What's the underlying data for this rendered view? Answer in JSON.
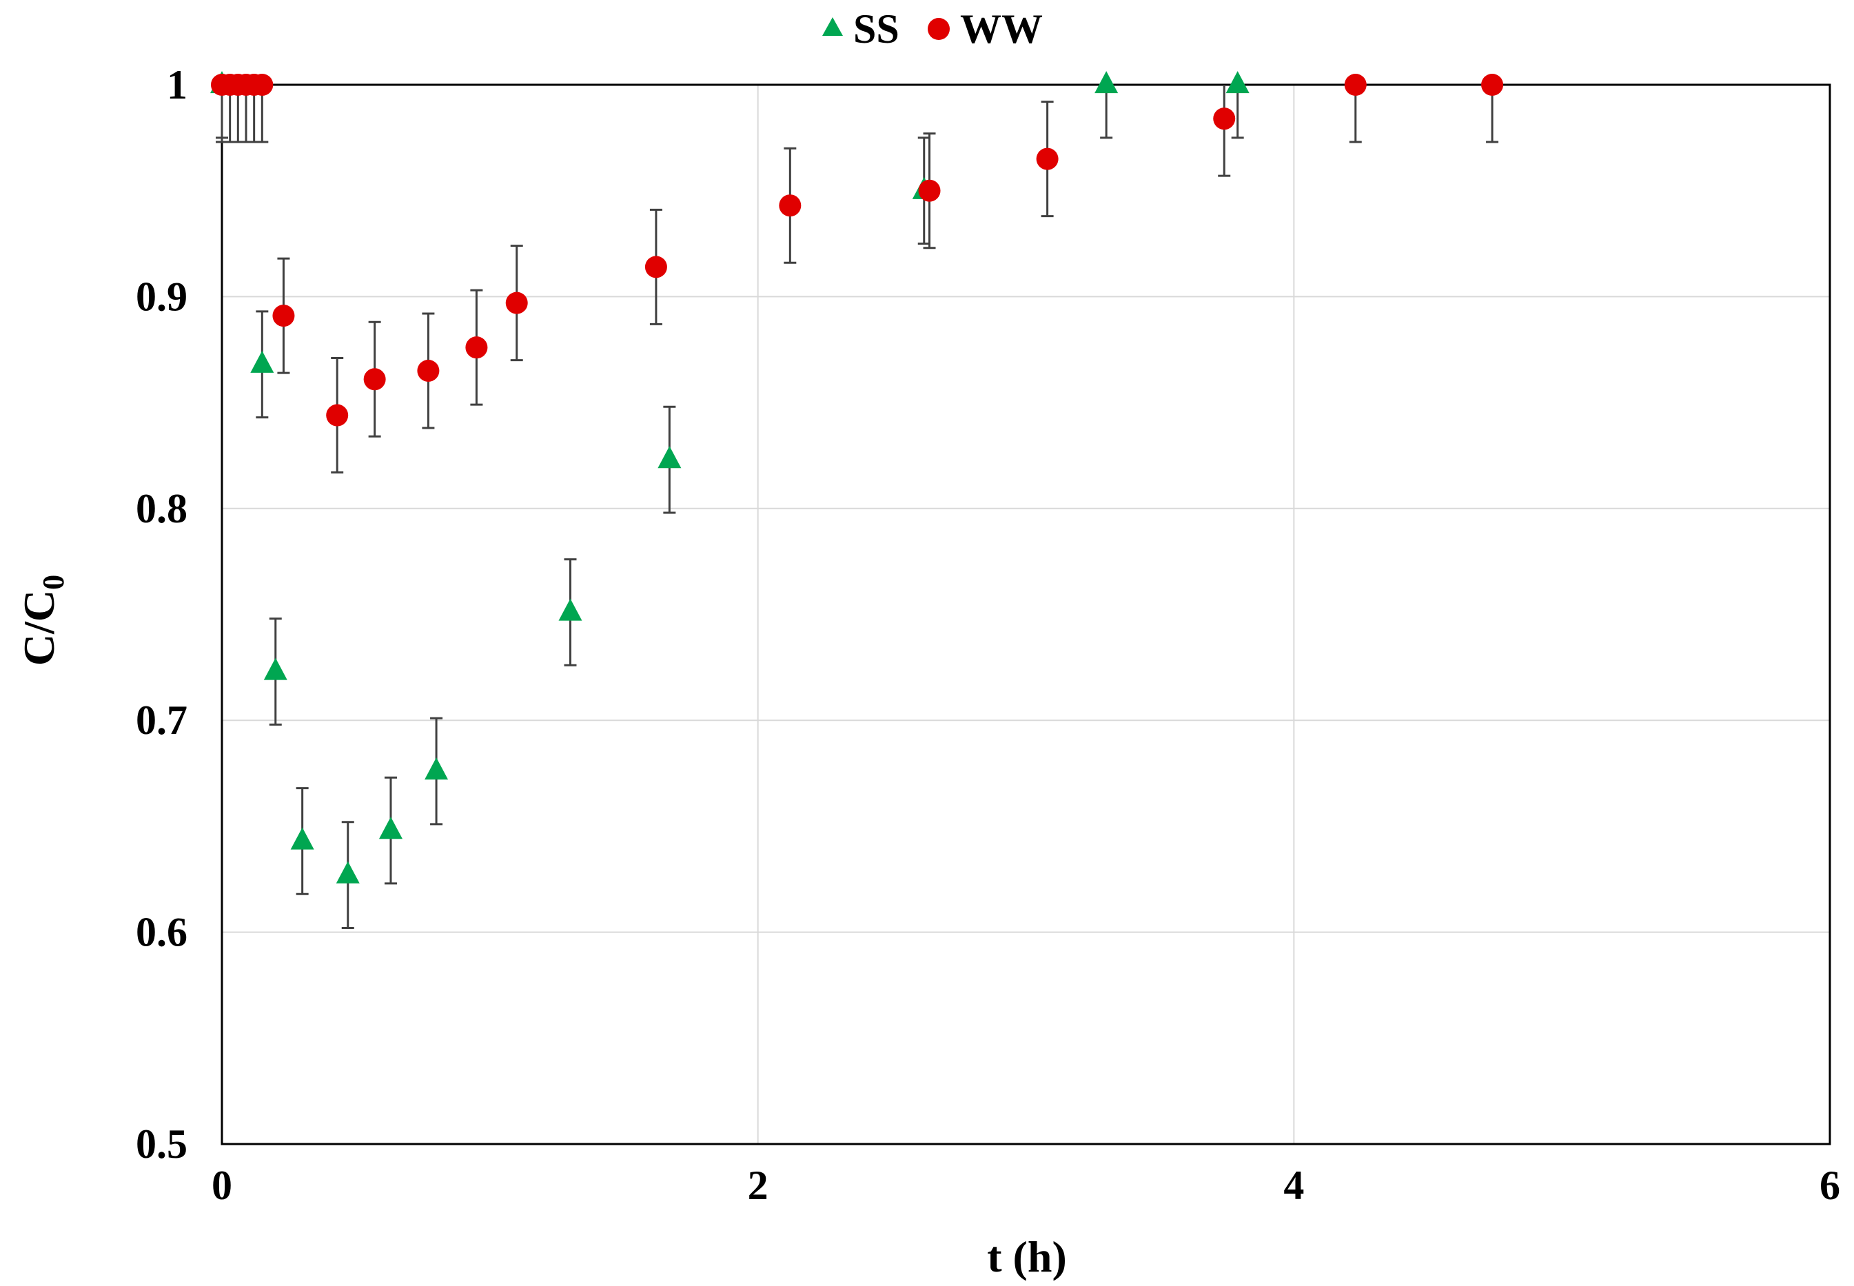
{
  "chart_data": {
    "type": "scatter",
    "title": "",
    "xlabel": "t (h)",
    "ylabel_main": "C/C",
    "ylabel_sub": "0",
    "xlim": [
      0,
      6
    ],
    "ylim": [
      0.5,
      1
    ],
    "xticks": [
      "0",
      "2",
      "4",
      "6"
    ],
    "yticks": [
      "0.5",
      "0.6",
      "0.7",
      "0.8",
      "0.9",
      "1"
    ],
    "grid": true,
    "legend_position": "top-center",
    "series": [
      {
        "name": "SS",
        "marker": "triangle",
        "color": "#00a651",
        "error": 0.025,
        "points": [
          {
            "x": 0.0,
            "y": 1.0
          },
          {
            "x": 0.15,
            "y": 0.868
          },
          {
            "x": 0.2,
            "y": 0.723
          },
          {
            "x": 0.3,
            "y": 0.643
          },
          {
            "x": 0.47,
            "y": 0.627
          },
          {
            "x": 0.63,
            "y": 0.648
          },
          {
            "x": 0.8,
            "y": 0.676
          },
          {
            "x": 1.3,
            "y": 0.751
          },
          {
            "x": 1.67,
            "y": 0.823
          },
          {
            "x": 2.62,
            "y": 0.95
          },
          {
            "x": 3.3,
            "y": 1.0
          },
          {
            "x": 3.79,
            "y": 1.0
          }
        ]
      },
      {
        "name": "WW",
        "marker": "circle",
        "color": "#e00000",
        "error": 0.027,
        "points": [
          {
            "x": 0.0,
            "y": 1.0
          },
          {
            "x": 0.03,
            "y": 1.0
          },
          {
            "x": 0.06,
            "y": 1.0
          },
          {
            "x": 0.09,
            "y": 1.0
          },
          {
            "x": 0.12,
            "y": 1.0
          },
          {
            "x": 0.15,
            "y": 1.0
          },
          {
            "x": 0.23,
            "y": 0.891
          },
          {
            "x": 0.43,
            "y": 0.844
          },
          {
            "x": 0.57,
            "y": 0.861
          },
          {
            "x": 0.77,
            "y": 0.865
          },
          {
            "x": 0.95,
            "y": 0.876
          },
          {
            "x": 1.1,
            "y": 0.897
          },
          {
            "x": 1.62,
            "y": 0.914
          },
          {
            "x": 2.12,
            "y": 0.943
          },
          {
            "x": 2.64,
            "y": 0.95
          },
          {
            "x": 3.08,
            "y": 0.965
          },
          {
            "x": 3.74,
            "y": 0.984
          },
          {
            "x": 4.23,
            "y": 1.0
          },
          {
            "x": 4.74,
            "y": 1.0
          }
        ]
      }
    ]
  }
}
